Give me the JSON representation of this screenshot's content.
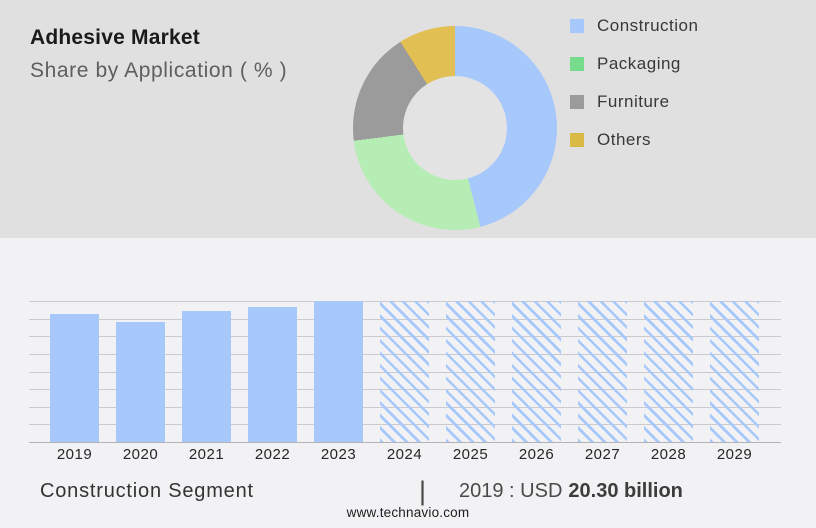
{
  "header": {
    "title": "Adhesive Market",
    "subtitle": "Share by Application ( % )"
  },
  "footer": {
    "segment_label": "Construction Segment",
    "separator": "|",
    "value_prefix": "2019 : USD",
    "value_bold": "20.30 billion",
    "website": "www.technavio.com"
  },
  "colors": {
    "top_background": "#e0e0e0",
    "bottom_background": "#f2f2f4",
    "accent_blue": "#a7c8fa",
    "gridline": "#cbcbcf",
    "axis_baseline": "#b3b3b7"
  },
  "chart_data": [
    {
      "type": "pie",
      "variant": "donut",
      "title": "Adhesive Market",
      "subtitle": "Share by Application ( % )",
      "labels": [
        "Construction",
        "Packaging",
        "Furniture",
        "Others"
      ],
      "values": [
        46,
        27,
        18,
        9
      ],
      "slice_colors": [
        "#a7c8fa",
        "#b5edb4",
        "#9b9b9b",
        "#e2bf52"
      ],
      "legend_colors": [
        "#a7c8fa",
        "#77dd8d",
        "#9b9b9b",
        "#d9ba45"
      ],
      "legend_position": "right",
      "start_angle_deg": 0,
      "clockwise": true
    },
    {
      "type": "bar",
      "categories": [
        "2019",
        "2020",
        "2021",
        "2022",
        "2023",
        "2024",
        "2025",
        "2026",
        "2027",
        "2028",
        "2029"
      ],
      "values": [
        91,
        85,
        93,
        96,
        100,
        100,
        100,
        100,
        100,
        100,
        100
      ],
      "forecast_start_category": "2024",
      "forecast_style": "diagonal-hatch",
      "bar_color": "#a7c8fa",
      "ylim": [
        0,
        100
      ],
      "gridline_count": 9,
      "y_axis_labels_shown": false,
      "xlabel": "",
      "ylabel": ""
    }
  ]
}
